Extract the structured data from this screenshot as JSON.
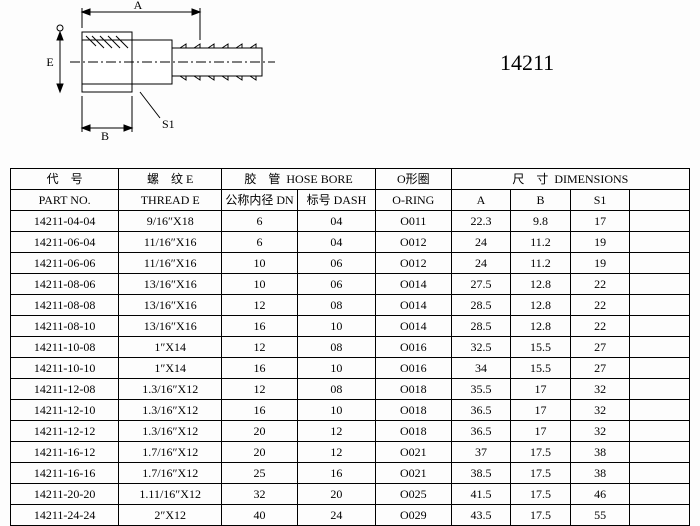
{
  "partLabel": "14211",
  "diagram": {
    "dims": {
      "A": "A",
      "B": "B",
      "E": "E",
      "S1": "S1"
    }
  },
  "header": {
    "partNoCn": "代　号",
    "partNoEn": "PART NO.",
    "threadCn": "螺　纹 E",
    "threadEn": "THREAD E",
    "hoseBoreCn": "胶　管",
    "hoseBoreEn": "HOSE BORE",
    "dnCn": "公称内径 DN",
    "dashCn": "标号 DASH",
    "oringCn": "O形圈",
    "oringEn": "O-RING",
    "dimsCn": "尺　寸",
    "dimsEn": "DIMENSIONS",
    "A": "A",
    "B": "B",
    "S1": "S1"
  },
  "rows": [
    {
      "part": "14211-04-04",
      "thread": "9/16″X18",
      "dn": "6",
      "dash": "04",
      "oring": "O011",
      "a": "22.3",
      "b": "9.8",
      "s1": "17"
    },
    {
      "part": "14211-06-04",
      "thread": "11/16″X16",
      "dn": "6",
      "dash": "04",
      "oring": "O012",
      "a": "24",
      "b": "11.2",
      "s1": "19"
    },
    {
      "part": "14211-06-06",
      "thread": "11/16″X16",
      "dn": "10",
      "dash": "06",
      "oring": "O012",
      "a": "24",
      "b": "11.2",
      "s1": "19"
    },
    {
      "part": "14211-08-06",
      "thread": "13/16″X16",
      "dn": "10",
      "dash": "06",
      "oring": "O014",
      "a": "27.5",
      "b": "12.8",
      "s1": "22"
    },
    {
      "part": "14211-08-08",
      "thread": "13/16″X16",
      "dn": "12",
      "dash": "08",
      "oring": "O014",
      "a": "28.5",
      "b": "12.8",
      "s1": "22"
    },
    {
      "part": "14211-08-10",
      "thread": "13/16″X16",
      "dn": "16",
      "dash": "10",
      "oring": "O014",
      "a": "28.5",
      "b": "12.8",
      "s1": "22"
    },
    {
      "part": "14211-10-08",
      "thread": "1″X14",
      "dn": "12",
      "dash": "08",
      "oring": "O016",
      "a": "32.5",
      "b": "15.5",
      "s1": "27"
    },
    {
      "part": "14211-10-10",
      "thread": "1″X14",
      "dn": "16",
      "dash": "10",
      "oring": "O016",
      "a": "34",
      "b": "15.5",
      "s1": "27"
    },
    {
      "part": "14211-12-08",
      "thread": "1.3/16″X12",
      "dn": "12",
      "dash": "08",
      "oring": "O018",
      "a": "35.5",
      "b": "17",
      "s1": "32"
    },
    {
      "part": "14211-12-10",
      "thread": "1.3/16″X12",
      "dn": "16",
      "dash": "10",
      "oring": "O018",
      "a": "36.5",
      "b": "17",
      "s1": "32"
    },
    {
      "part": "14211-12-12",
      "thread": "1.3/16″X12",
      "dn": "20",
      "dash": "12",
      "oring": "O018",
      "a": "36.5",
      "b": "17",
      "s1": "32"
    },
    {
      "part": "14211-16-12",
      "thread": "1.7/16″X12",
      "dn": "20",
      "dash": "12",
      "oring": "O021",
      "a": "37",
      "b": "17.5",
      "s1": "38"
    },
    {
      "part": "14211-16-16",
      "thread": "1.7/16″X12",
      "dn": "25",
      "dash": "16",
      "oring": "O021",
      "a": "38.5",
      "b": "17.5",
      "s1": "38"
    },
    {
      "part": "14211-20-20",
      "thread": "1.11/16″X12",
      "dn": "32",
      "dash": "20",
      "oring": "O025",
      "a": "41.5",
      "b": "17.5",
      "s1": "46"
    },
    {
      "part": "14211-24-24",
      "thread": "2″X12",
      "dn": "40",
      "dash": "24",
      "oring": "O029",
      "a": "43.5",
      "b": "17.5",
      "s1": "55"
    }
  ]
}
